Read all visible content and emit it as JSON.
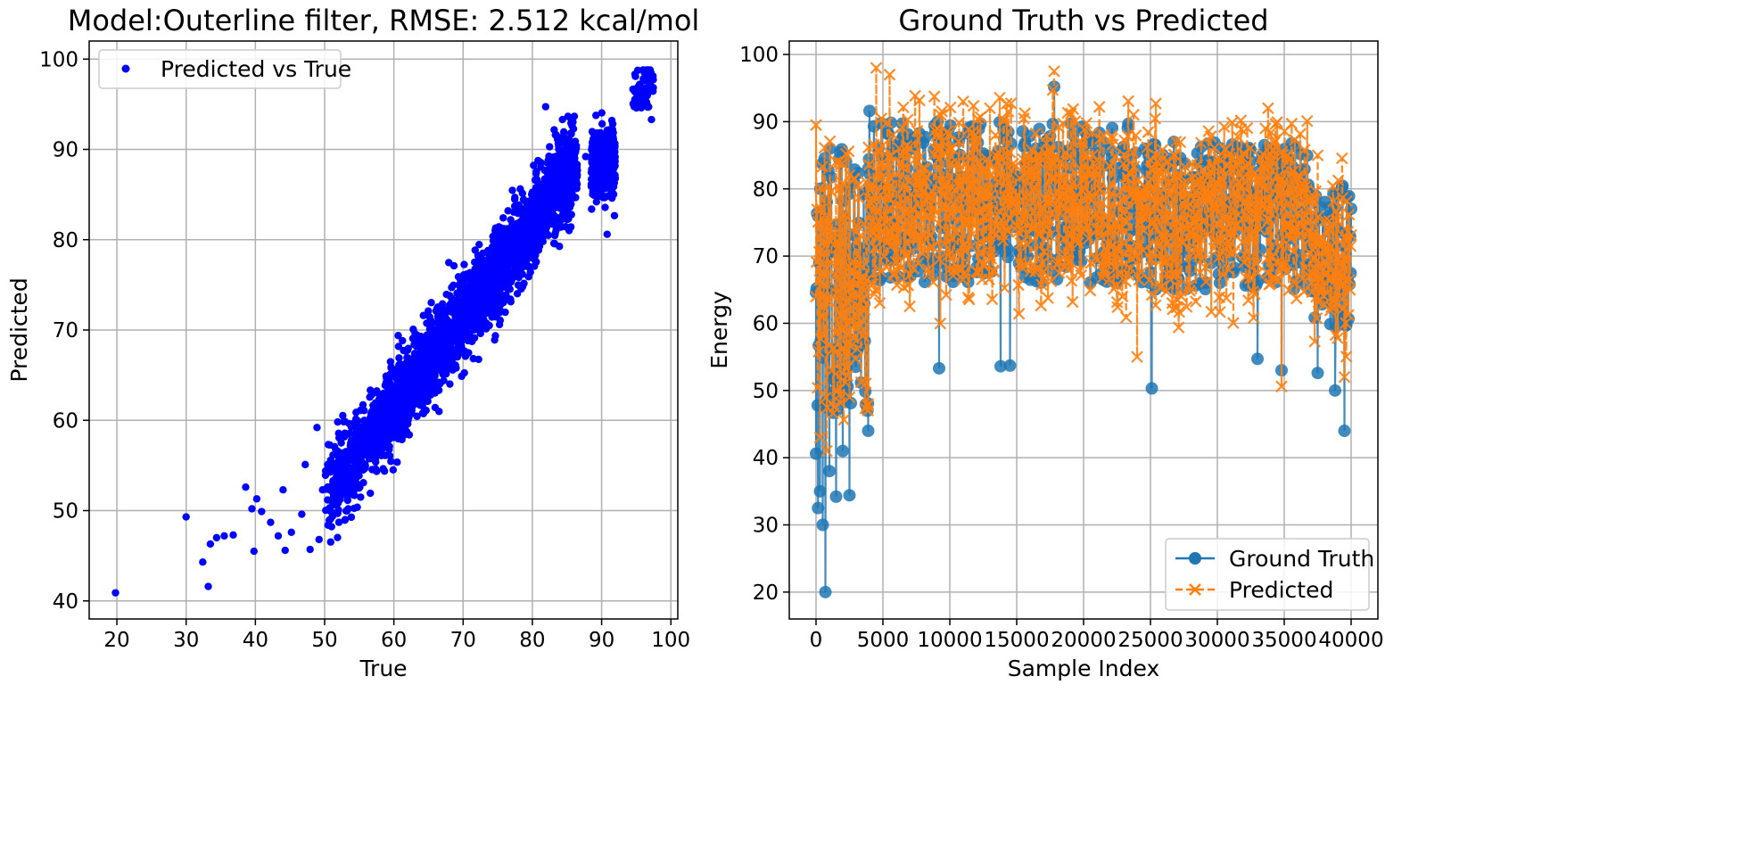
{
  "chart_data": [
    {
      "type": "scatter",
      "title": "Model:Outerline filter, RMSE: 2.512 kcal/mol",
      "xlabel": "True",
      "ylabel": "Predicted",
      "xlim": [
        16,
        101
      ],
      "ylim": [
        38,
        102
      ],
      "xticks": [
        20,
        30,
        40,
        50,
        60,
        70,
        80,
        90,
        100
      ],
      "yticks": [
        40,
        50,
        60,
        70,
        80,
        90,
        100
      ],
      "grid": true,
      "legend": {
        "position": "top-left",
        "entries": [
          "Predicted vs True"
        ]
      },
      "series": [
        {
          "name": "Predicted vs True",
          "color": "#0000ff",
          "trend": "predicted ≈ true, dense band from about 50 to 97",
          "sample_points": [
            [
              19.8,
              40.9
            ],
            [
              30.0,
              49.3
            ],
            [
              32.4,
              44.3
            ],
            [
              33.2,
              41.6
            ],
            [
              33.5,
              46.3
            ],
            [
              34.4,
              47.0
            ],
            [
              35.5,
              47.2
            ],
            [
              36.8,
              47.3
            ],
            [
              38.6,
              52.6
            ],
            [
              39.5,
              50.2
            ],
            [
              39.8,
              45.5
            ],
            [
              40.2,
              51.3
            ],
            [
              40.9,
              49.9
            ],
            [
              42.2,
              48.7
            ],
            [
              43.3,
              47.2
            ],
            [
              44.0,
              52.3
            ],
            [
              44.3,
              45.6
            ],
            [
              45.2,
              47.6
            ],
            [
              46.7,
              49.6
            ],
            [
              47.2,
              55.1
            ],
            [
              47.9,
              45.7
            ],
            [
              48.9,
              59.2
            ],
            [
              49.2,
              46.8
            ],
            [
              49.7,
              52.3
            ],
            [
              50.9,
              49.9
            ],
            [
              51.3,
              55.2
            ],
            [
              52.4,
              57.5
            ],
            [
              53.1,
              53.6
            ],
            [
              53.7,
              51.8
            ],
            [
              54.8,
              52.6
            ],
            [
              55.9,
              56.2
            ],
            [
              56.2,
              59.9
            ],
            [
              57.6,
              59.2
            ],
            [
              58.2,
              56.1
            ],
            [
              59.6,
              65.8
            ],
            [
              60.0,
              58.1
            ],
            [
              61.0,
              61.1
            ],
            [
              62.0,
              59.6
            ],
            [
              63.3,
              66.9
            ],
            [
              64.5,
              64.8
            ],
            [
              65.7,
              66.3
            ],
            [
              66.2,
              69.0
            ],
            [
              67.2,
              64.4
            ],
            [
              68.8,
              70.9
            ],
            [
              69.6,
              68.3
            ],
            [
              70.9,
              74.2
            ],
            [
              71.2,
              70.5
            ],
            [
              72.8,
              73.8
            ],
            [
              73.5,
              70.6
            ],
            [
              74.2,
              79.1
            ],
            [
              75.6,
              77.8
            ],
            [
              76.9,
              75.3
            ],
            [
              77.3,
              81.6
            ],
            [
              78.5,
              76.2
            ],
            [
              79.3,
              79.8
            ],
            [
              80.5,
              82.6
            ],
            [
              81.7,
              84.5
            ],
            [
              82.9,
              86.4
            ],
            [
              83.3,
              80.7
            ],
            [
              84.9,
              88.7
            ],
            [
              85.2,
              82.6
            ],
            [
              86.5,
              87.7
            ],
            [
              87.7,
              89.2
            ],
            [
              88.5,
              85.9
            ],
            [
              89.3,
              91.8
            ],
            [
              90.4,
              88.0
            ],
            [
              90.8,
              80.6
            ],
            [
              91.5,
              84.6
            ],
            [
              95.1,
              96.1
            ],
            [
              95.8,
              94.8
            ],
            [
              96.5,
              97.7
            ],
            [
              97.0,
              98.8
            ],
            [
              97.2,
              93.3
            ]
          ]
        }
      ]
    },
    {
      "type": "line",
      "title": "Ground Truth vs Predicted",
      "xlabel": "Sample Index",
      "ylabel": "Energy",
      "xlim": [
        -2000,
        42000
      ],
      "ylim": [
        16,
        102
      ],
      "xticks": [
        0,
        5000,
        10000,
        15000,
        20000,
        25000,
        30000,
        35000,
        40000
      ],
      "yticks": [
        20,
        30,
        40,
        50,
        60,
        70,
        80,
        90,
        100
      ],
      "grid": true,
      "legend": {
        "position": "bottom-right",
        "entries": [
          "Ground Truth",
          "Predicted"
        ]
      },
      "series": [
        {
          "name": "Ground Truth",
          "color": "#1f77b4",
          "marker": "o",
          "linestyle": "solid",
          "sample_points": [
            [
              0,
              40.6
            ],
            [
              150,
              32.5
            ],
            [
              300,
              35.0
            ],
            [
              500,
              30.0
            ],
            [
              700,
              20.0
            ],
            [
              1000,
              38.0
            ],
            [
              1500,
              34.2
            ],
            [
              2000,
              41.0
            ],
            [
              2500,
              34.4
            ],
            [
              3900,
              44.0
            ],
            [
              4000,
              91.6
            ],
            [
              9200,
              53.3
            ],
            [
              13800,
              53.6
            ],
            [
              14500,
              53.7
            ],
            [
              17800,
              95.2
            ],
            [
              25100,
              50.3
            ],
            [
              33000,
              54.7
            ],
            [
              34800,
              53.0
            ],
            [
              37500,
              52.6
            ],
            [
              38800,
              50.0
            ],
            [
              39500,
              44.0
            ]
          ]
        },
        {
          "name": "Predicted",
          "color": "#ff7f0e",
          "marker": "x",
          "linestyle": "dashed",
          "sample_points": [
            [
              0,
              89.5
            ],
            [
              300,
              43.0
            ],
            [
              800,
              41.0
            ],
            [
              1500,
              84.0
            ],
            [
              2500,
              49.0
            ],
            [
              3900,
              48.0
            ],
            [
              4500,
              98.0
            ],
            [
              5500,
              97.0
            ],
            [
              11000,
              93.0
            ],
            [
              13000,
              92.0
            ],
            [
              17800,
              97.5
            ],
            [
              24000,
              55.0
            ],
            [
              25400,
              92.7
            ],
            [
              34800,
              50.6
            ],
            [
              37500,
              85.0
            ],
            [
              39500,
              52.0
            ]
          ]
        }
      ]
    }
  ]
}
